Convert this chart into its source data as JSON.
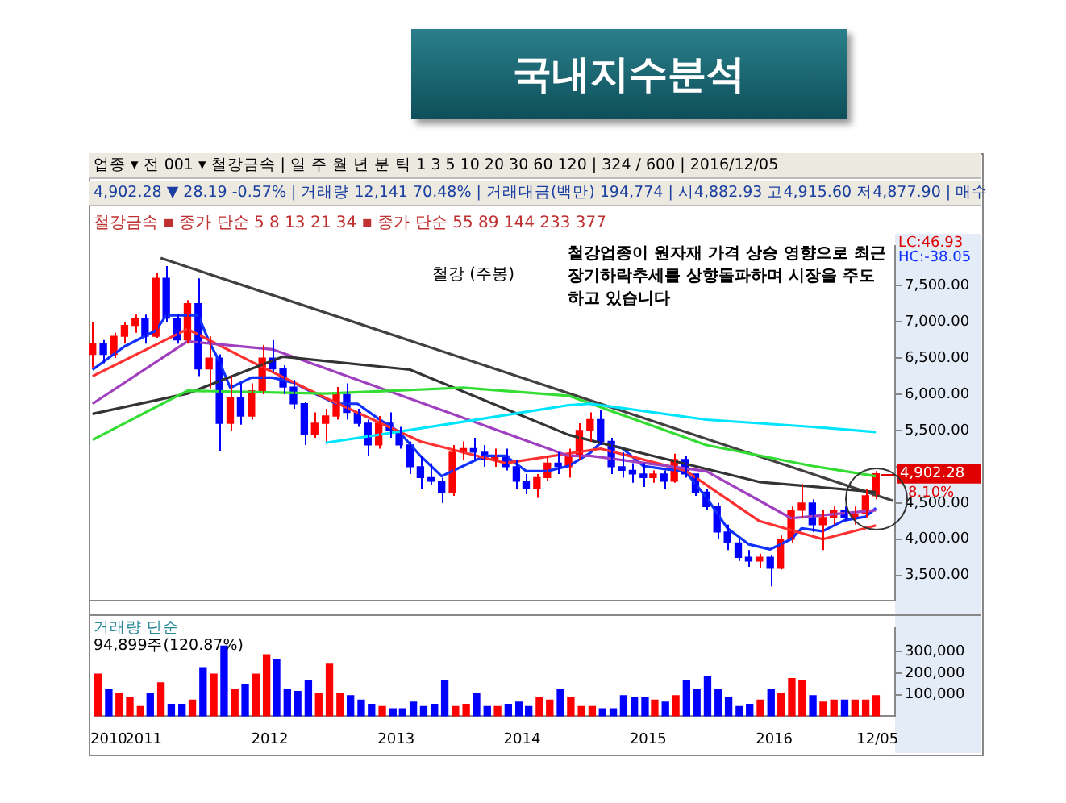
{
  "chart_data": [
    {
      "type": "candlestick",
      "title": "국내지수분석",
      "subtitle": "철강 (주봉)",
      "x": [
        "2010-10",
        "2010-11",
        "2010-12",
        "2011-01",
        "2011-02",
        "2011-03",
        "2011-04",
        "2011-05",
        "2011-06",
        "2011-07",
        "2011-08",
        "2011-09",
        "2011-10",
        "2011-11",
        "2011-12",
        "2012-01",
        "2012-02",
        "2012-03",
        "2012-04",
        "2012-05",
        "2012-06",
        "2012-07",
        "2012-08",
        "2012-09",
        "2012-10",
        "2012-11",
        "2012-12",
        "2013-01",
        "2013-02",
        "2013-03",
        "2013-04",
        "2013-05",
        "2013-06",
        "2013-07",
        "2013-08",
        "2013-09",
        "2013-10",
        "2013-11",
        "2013-12",
        "2014-01",
        "2014-02",
        "2014-03",
        "2014-04",
        "2014-05",
        "2014-06",
        "2014-07",
        "2014-08",
        "2014-09",
        "2014-10",
        "2014-11",
        "2014-12",
        "2015-01",
        "2015-02",
        "2015-03",
        "2015-04",
        "2015-05",
        "2015-06",
        "2015-07",
        "2015-08",
        "2015-09",
        "2015-10",
        "2015-11",
        "2015-12",
        "2016-01",
        "2016-02",
        "2016-03",
        "2016-04",
        "2016-05",
        "2016-06",
        "2016-07",
        "2016-08",
        "2016-09",
        "2016-10",
        "2016-11",
        "2016-12"
      ],
      "ohlc": [
        [
          6550,
          7000,
          6370,
          6700
        ],
        [
          6700,
          6750,
          6430,
          6550
        ],
        [
          6550,
          6850,
          6500,
          6800
        ],
        [
          6800,
          7000,
          6700,
          6950
        ],
        [
          6950,
          7100,
          6850,
          7050
        ],
        [
          7050,
          7100,
          6700,
          6800
        ],
        [
          6800,
          7670,
          6780,
          7600
        ],
        [
          7600,
          7770,
          7000,
          7050
        ],
        [
          7050,
          7100,
          6700,
          6750
        ],
        [
          6750,
          7300,
          6700,
          7250
        ],
        [
          7250,
          7600,
          6250,
          6350
        ],
        [
          6350,
          6800,
          6080,
          6500
        ],
        [
          6500,
          6550,
          5220,
          5600
        ],
        [
          5600,
          6250,
          5500,
          5950
        ],
        [
          5950,
          6150,
          5580,
          5700
        ],
        [
          5700,
          6150,
          5650,
          6050
        ],
        [
          6050,
          6680,
          6000,
          6500
        ],
        [
          6500,
          6750,
          6300,
          6350
        ],
        [
          6350,
          6400,
          6000,
          6100
        ],
        [
          6100,
          6200,
          5800,
          5870
        ],
        [
          5870,
          5900,
          5300,
          5450
        ],
        [
          5450,
          5750,
          5400,
          5600
        ],
        [
          5600,
          5800,
          5350,
          5700
        ],
        [
          5700,
          6100,
          5650,
          6000
        ],
        [
          6000,
          6150,
          5650,
          5750
        ],
        [
          5750,
          5800,
          5550,
          5600
        ],
        [
          5600,
          5650,
          5150,
          5300
        ],
        [
          5300,
          5700,
          5250,
          5600
        ],
        [
          5600,
          5750,
          5400,
          5500
        ],
        [
          5500,
          5550,
          5250,
          5300
        ],
        [
          5300,
          5350,
          4900,
          5000
        ],
        [
          5000,
          5150,
          4700,
          4850
        ],
        [
          4850,
          5050,
          4750,
          4800
        ],
        [
          4800,
          4850,
          4500,
          4650
        ],
        [
          4650,
          5300,
          4600,
          5200
        ],
        [
          5200,
          5350,
          5100,
          5250
        ],
        [
          5250,
          5400,
          5100,
          5200
        ],
        [
          5200,
          5300,
          5000,
          5100
        ],
        [
          5100,
          5250,
          5000,
          5150
        ],
        [
          5150,
          5250,
          4950,
          5000
        ],
        [
          5000,
          5100,
          4700,
          4800
        ],
        [
          4800,
          4900,
          4620,
          4700
        ],
        [
          4700,
          4900,
          4570,
          4850
        ],
        [
          4850,
          5150,
          4800,
          5050
        ],
        [
          5050,
          5200,
          4900,
          5000
        ],
        [
          5000,
          5250,
          4850,
          5150
        ],
        [
          5150,
          5600,
          5100,
          5500
        ],
        [
          5500,
          5750,
          5350,
          5650
        ],
        [
          5650,
          5780,
          5300,
          5350
        ],
        [
          5350,
          5400,
          4900,
          5000
        ],
        [
          5000,
          5200,
          4850,
          4950
        ],
        [
          4950,
          5050,
          4780,
          4900
        ],
        [
          4900,
          5050,
          4720,
          4850
        ],
        [
          4850,
          4950,
          4780,
          4900
        ],
        [
          4900,
          4950,
          4700,
          4800
        ],
        [
          4800,
          5180,
          4780,
          5100
        ],
        [
          5100,
          5150,
          4850,
          4900
        ],
        [
          4900,
          4900,
          4600,
          4650
        ],
        [
          4650,
          4700,
          4400,
          4450
        ],
        [
          4450,
          4500,
          4000,
          4100
        ],
        [
          4100,
          4200,
          3850,
          3950
        ],
        [
          3950,
          4000,
          3700,
          3750
        ],
        [
          3750,
          3850,
          3620,
          3700
        ],
        [
          3700,
          3800,
          3600,
          3750
        ],
        [
          3750,
          3780,
          3350,
          3600
        ],
        [
          3600,
          4050,
          3580,
          4000
        ],
        [
          4000,
          4450,
          3950,
          4400
        ],
        [
          4400,
          4760,
          4300,
          4500
        ],
        [
          4500,
          4550,
          4100,
          4200
        ],
        [
          4200,
          4400,
          3850,
          4300
        ],
        [
          4300,
          4450,
          4200,
          4400
        ],
        [
          4400,
          4450,
          4250,
          4300
        ],
        [
          4300,
          4450,
          4200,
          4350
        ],
        [
          4350,
          4700,
          4300,
          4600
        ],
        [
          4600,
          4940,
          4550,
          4902.28
        ]
      ],
      "colors": [
        "#ff0000",
        "#0000ff",
        "#ff0000",
        "#ff0000",
        "#ff0000",
        "#0000ff",
        "#ff0000",
        "#0000ff",
        "#0000ff",
        "#ff0000",
        "#0000ff",
        "#ff0000",
        "#0000ff",
        "#ff0000",
        "#0000ff",
        "#ff0000",
        "#ff0000",
        "#0000ff",
        "#0000ff",
        "#0000ff",
        "#0000ff",
        "#ff0000",
        "#ff0000",
        "#ff0000",
        "#0000ff",
        "#0000ff",
        "#0000ff",
        "#ff0000",
        "#0000ff",
        "#0000ff",
        "#0000ff",
        "#0000ff",
        "#0000ff",
        "#0000ff",
        "#ff0000",
        "#ff0000",
        "#0000ff",
        "#0000ff",
        "#ff0000",
        "#0000ff",
        "#0000ff",
        "#0000ff",
        "#ff0000",
        "#ff0000",
        "#0000ff",
        "#ff0000",
        "#ff0000",
        "#ff0000",
        "#0000ff",
        "#0000ff",
        "#0000ff",
        "#0000ff",
        "#0000ff",
        "#ff0000",
        "#0000ff",
        "#ff0000",
        "#0000ff",
        "#0000ff",
        "#0000ff",
        "#0000ff",
        "#0000ff",
        "#0000ff",
        "#0000ff",
        "#ff0000",
        "#0000ff",
        "#ff0000",
        "#ff0000",
        "#ff0000",
        "#0000ff",
        "#ff0000",
        "#ff0000",
        "#0000ff",
        "#ff0000",
        "#ff0000",
        "#ff0000"
      ],
      "series": [
        {
          "type": "line",
          "color": "#00e5ff",
          "x": [
            "2012-08",
            "2013-09",
            "2014-07",
            "2014-09",
            "2015-08",
            "2016-06",
            "2016-12"
          ],
          "values": [
            5330,
            5620,
            5850,
            5870,
            5650,
            5550,
            5480
          ]
        },
        {
          "type": "line",
          "color": "#33dd33",
          "x": [
            "2010-10",
            "2011-07",
            "2012-08",
            "2013-09",
            "2014-07",
            "2015-08",
            "2016-06",
            "2016-12"
          ],
          "values": [
            5370,
            6050,
            6010,
            6090,
            5980,
            5300,
            5010,
            4870
          ]
        },
        {
          "type": "line",
          "color": "#333333",
          "x": [
            "2010-10",
            "2011-07",
            "2012-04",
            "2013-04",
            "2014-07",
            "2015-03",
            "2016-01",
            "2016-12"
          ],
          "values": [
            5730,
            6010,
            6520,
            6340,
            5440,
            5150,
            4790,
            4650
          ]
        },
        {
          "type": "line",
          "color": "#a040c0",
          "x": [
            "2010-10",
            "2011-07",
            "2012-03",
            "2013-04",
            "2014-07",
            "2014-09",
            "2015-08",
            "2016-04",
            "2016-12"
          ],
          "values": [
            5870,
            6730,
            6620,
            5940,
            5150,
            5150,
            4940,
            4290,
            4400
          ]
        },
        {
          "type": "line",
          "color": "#ff3030",
          "x": [
            "2010-10",
            "2011-07",
            "2012-01",
            "2012-08",
            "2013-05",
            "2014-01",
            "2014-10",
            "2015-06",
            "2016-01",
            "2016-07",
            "2016-12"
          ],
          "values": [
            6250,
            6900,
            6450,
            5950,
            5350,
            5050,
            5250,
            4950,
            4250,
            4000,
            4190
          ]
        },
        {
          "type": "line",
          "color": "#1030ff",
          "x": [
            "2010-10",
            "2011-01",
            "2011-04",
            "2011-05",
            "2011-08",
            "2011-09",
            "2011-10",
            "2011-11",
            "2012-01",
            "2012-03",
            "2012-05",
            "2012-07",
            "2012-09",
            "2012-11",
            "2013-01",
            "2013-03",
            "2013-05",
            "2013-07",
            "2013-09",
            "2013-11",
            "2014-01",
            "2014-03",
            "2014-05",
            "2014-07",
            "2014-09",
            "2014-10",
            "2014-12",
            "2015-02",
            "2015-04",
            "2015-06",
            "2015-08",
            "2015-10",
            "2015-12",
            "2016-02",
            "2016-04",
            "2016-05",
            "2016-07",
            "2016-09",
            "2016-11",
            "2016-12"
          ],
          "values": [
            6340,
            6660,
            6880,
            7090,
            7090,
            6730,
            6450,
            6090,
            6230,
            6230,
            6160,
            6010,
            5870,
            5870,
            5660,
            5480,
            5150,
            4870,
            5010,
            5150,
            5150,
            4940,
            4940,
            5010,
            5190,
            5330,
            5260,
            5010,
            4970,
            4940,
            4580,
            4150,
            3930,
            3860,
            4000,
            4150,
            4110,
            4260,
            4310,
            4430
          ]
        },
        {
          "type": "line",
          "color": "#404040",
          "x": [
            "2011-04-15",
            "2017-01-20"
          ],
          "values": [
            7880,
            4530
          ]
        }
      ],
      "xlim": [
        "2010-09-20",
        "2017-01-25"
      ],
      "ylim": [
        3150,
        8050
      ],
      "yticks": [
        {
          "value": 3500,
          "label": "3,500.00"
        },
        {
          "value": 4000,
          "label": "4,000.00"
        },
        {
          "value": 4500,
          "label": "4,500.00"
        },
        {
          "value": 5000,
          "label": null
        },
        {
          "value": 5500,
          "label": "5,500.00"
        },
        {
          "value": 6000,
          "label": "6,000.00"
        },
        {
          "value": 6500,
          "label": "6,500.00"
        },
        {
          "value": 7000,
          "label": "7,000.00"
        },
        {
          "value": 7500,
          "label": "7,500.00"
        }
      ],
      "tick_labels": "y",
      "grid": false,
      "legend": false,
      "annotations": [
        "업종 ▾ 전 001 ▾ 철강금속 | 일 주 월 년 분 틱 1 3 5 10 20 30 60 120 | 324 / 600 | 2016/12/05",
        "4,902.28 ▼ 28.19 -0.57% | 거래량 12,141 70.48% | 거래대금(백만) 194,774 | 시4,882.93 고4,915.60 저4,877.90 | 매수",
        "철강금속 ▪ 종가 단순 5 8 13 21 34 ▪ 종가 단순 55 89 144 233 377",
        "철강업종이 원자재 가격 상승 영향으로 최근 장기하락추세를 상향돌파하며 시장을 주도하고 있습니다",
        "LC:46.93",
        "HC:-38.05",
        {
          "text": "4,902.28",
          "x": "2016-12",
          "y": 4902.28
        },
        "8.10%"
      ]
    },
    {
      "type": "bar",
      "x": [
        "2010-10",
        "2010-11",
        "2010-12",
        "2011-01",
        "2011-02",
        "2011-03",
        "2011-04",
        "2011-05",
        "2011-06",
        "2011-07",
        "2011-08",
        "2011-09",
        "2011-10",
        "2011-11",
        "2011-12",
        "2012-01",
        "2012-02",
        "2012-03",
        "2012-04",
        "2012-05",
        "2012-06",
        "2012-07",
        "2012-08",
        "2012-09",
        "2012-10",
        "2012-11",
        "2012-12",
        "2013-01",
        "2013-02",
        "2013-03",
        "2013-04",
        "2013-05",
        "2013-06",
        "2013-07",
        "2013-08",
        "2013-09",
        "2013-10",
        "2013-11",
        "2013-12",
        "2014-01",
        "2014-02",
        "2014-03",
        "2014-04",
        "2014-05",
        "2014-06",
        "2014-07",
        "2014-08",
        "2014-09",
        "2014-10",
        "2014-11",
        "2014-12",
        "2015-01",
        "2015-02",
        "2015-03",
        "2015-04",
        "2015-05",
        "2015-06",
        "2015-07",
        "2015-08",
        "2015-09",
        "2015-10",
        "2015-11",
        "2015-12",
        "2016-01",
        "2016-02",
        "2016-03",
        "2016-04",
        "2016-05",
        "2016-06",
        "2016-07",
        "2016-08",
        "2016-09",
        "2016-10",
        "2016-11",
        "2016-12"
      ],
      "values": [
        195000,
        125000,
        105000,
        85000,
        45000,
        105000,
        155000,
        55000,
        55000,
        75000,
        225000,
        195000,
        325000,
        125000,
        145000,
        195000,
        285000,
        265000,
        125000,
        115000,
        165000,
        105000,
        245000,
        105000,
        95000,
        75000,
        55000,
        45000,
        35000,
        35000,
        65000,
        45000,
        55000,
        165000,
        45000,
        55000,
        105000,
        45000,
        45000,
        55000,
        65000,
        45000,
        85000,
        75000,
        125000,
        85000,
        45000,
        45000,
        35000,
        35000,
        95000,
        85000,
        85000,
        75000,
        65000,
        95000,
        165000,
        125000,
        185000,
        125000,
        85000,
        45000,
        55000,
        75000,
        125000,
        105000,
        175000,
        165000,
        95000,
        65000,
        75000,
        75000,
        75000,
        75000,
        95000
      ],
      "colors": [
        "#ff0000",
        "#0000ff",
        "#ff0000",
        "#ff0000",
        "#ff0000",
        "#0000ff",
        "#ff0000",
        "#0000ff",
        "#0000ff",
        "#ff0000",
        "#0000ff",
        "#ff0000",
        "#0000ff",
        "#ff0000",
        "#0000ff",
        "#ff0000",
        "#ff0000",
        "#0000ff",
        "#0000ff",
        "#0000ff",
        "#0000ff",
        "#ff0000",
        "#ff0000",
        "#ff0000",
        "#0000ff",
        "#0000ff",
        "#0000ff",
        "#ff0000",
        "#0000ff",
        "#0000ff",
        "#0000ff",
        "#0000ff",
        "#0000ff",
        "#0000ff",
        "#ff0000",
        "#ff0000",
        "#0000ff",
        "#0000ff",
        "#ff0000",
        "#0000ff",
        "#0000ff",
        "#0000ff",
        "#ff0000",
        "#ff0000",
        "#0000ff",
        "#ff0000",
        "#ff0000",
        "#ff0000",
        "#0000ff",
        "#0000ff",
        "#0000ff",
        "#0000ff",
        "#0000ff",
        "#ff0000",
        "#0000ff",
        "#ff0000",
        "#0000ff",
        "#0000ff",
        "#0000ff",
        "#0000ff",
        "#0000ff",
        "#0000ff",
        "#0000ff",
        "#ff0000",
        "#0000ff",
        "#ff0000",
        "#ff0000",
        "#ff0000",
        "#0000ff",
        "#ff0000",
        "#ff0000",
        "#0000ff",
        "#ff0000",
        "#ff0000",
        "#ff0000"
      ],
      "xlim": [
        "2010-09-20",
        "2017-01-25"
      ],
      "xticks": [
        {
          "value": "2010-11-01",
          "label": "2010"
        },
        {
          "value": "2011-02-10",
          "label": "2011"
        },
        {
          "value": "2012-02-10",
          "label": "2012"
        },
        {
          "value": "2013-02-10",
          "label": "2013"
        },
        {
          "value": "2014-02-10",
          "label": "2014"
        },
        {
          "value": "2015-02-10",
          "label": "2015"
        },
        {
          "value": "2016-02-10",
          "label": "2016"
        },
        {
          "value": "2016-12-05",
          "label": "12/05"
        }
      ],
      "ylim": [
        0,
        410000
      ],
      "yticks": [
        {
          "value": 100000,
          "label": "100,000"
        },
        {
          "value": 200000,
          "label": "200,000"
        },
        {
          "value": 300000,
          "label": "300,000"
        }
      ],
      "grid": false,
      "legend": false,
      "annotations": [
        "거래량 단순",
        "94,899주(120.87%)"
      ]
    }
  ]
}
